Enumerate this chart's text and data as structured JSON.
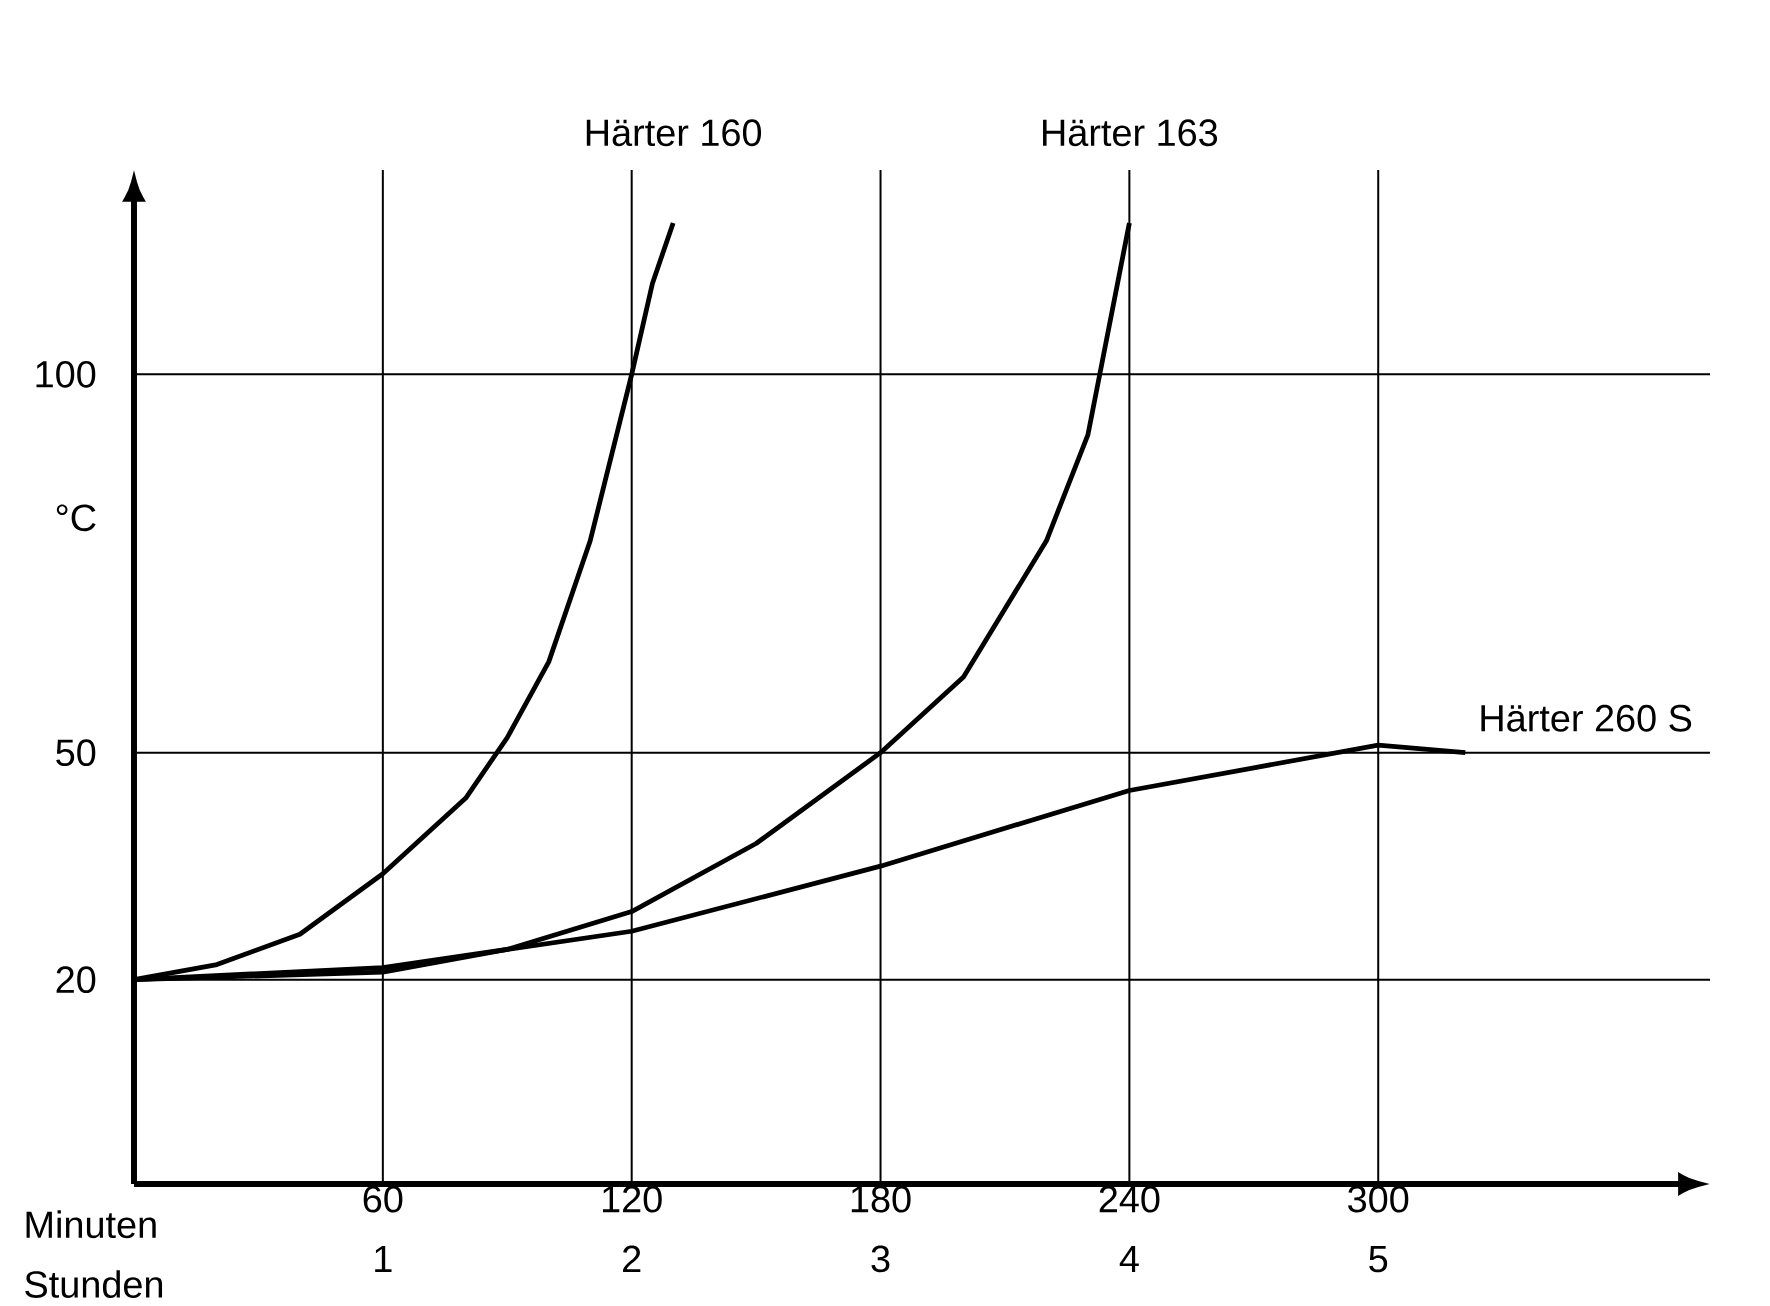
{
  "chart_data": {
    "type": "line",
    "xlabel": "Minuten",
    "x2label": "Stunden",
    "ylabel": "°C",
    "xlim": [
      0,
      380
    ],
    "xticks": [
      60,
      120,
      180,
      240,
      300
    ],
    "x2lim": [
      0,
      6.3333
    ],
    "x2ticks": [
      1,
      2,
      3,
      4,
      5
    ],
    "ylim": [
      -7,
      127
    ],
    "yticks": [
      20,
      50,
      100
    ],
    "grid": true,
    "marker": "none",
    "line_style": "solid",
    "series": [
      {
        "name": "Härter 160",
        "color": "#000000",
        "x": [
          0,
          20,
          40,
          60,
          80,
          90,
          100,
          110,
          120,
          125,
          130
        ],
        "values": [
          20,
          22,
          26,
          34,
          44,
          52,
          62,
          78,
          100,
          112,
          120
        ]
      },
      {
        "name": "Härter 163",
        "color": "#000000",
        "x": [
          0,
          60,
          90,
          120,
          150,
          180,
          200,
          220,
          230,
          240
        ],
        "values": [
          20,
          21,
          24,
          29,
          38,
          50,
          60,
          78,
          92,
          120
        ]
      },
      {
        "name": "Härter 260 S",
        "color": "#000000",
        "x": [
          0,
          60,
          120,
          180,
          240,
          270,
          300,
          321
        ],
        "values": [
          20,
          21.6,
          26.4,
          35,
          45,
          48,
          51,
          50
        ]
      }
    ]
  }
}
